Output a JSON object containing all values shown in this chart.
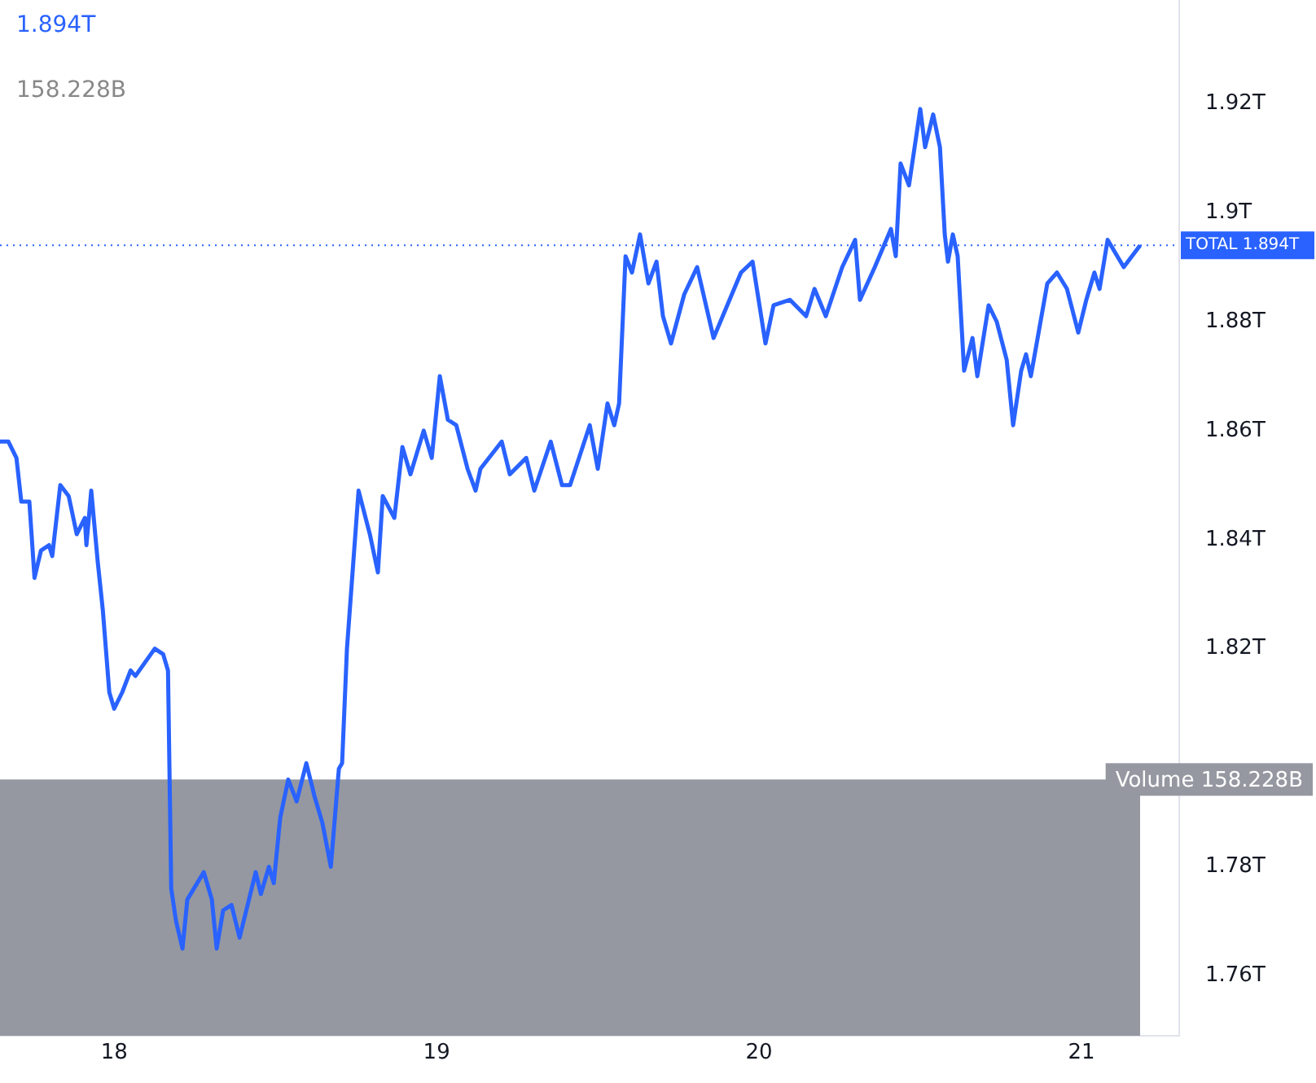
{
  "chart_data": {
    "type": "line",
    "annotations": [
      "1.894T",
      "158.228B"
    ],
    "x": [
      17.646,
      17.672,
      17.697,
      17.712,
      17.737,
      17.753,
      17.773,
      17.798,
      17.808,
      17.833,
      17.859,
      17.884,
      17.909,
      17.914,
      17.929,
      17.949,
      17.965,
      17.985,
      18.0,
      18.025,
      18.051,
      18.066,
      18.126,
      18.152,
      18.167,
      18.177,
      18.192,
      18.212,
      18.227,
      18.278,
      18.303,
      18.318,
      18.338,
      18.364,
      18.389,
      18.439,
      18.455,
      18.48,
      18.495,
      18.515,
      18.54,
      18.566,
      18.596,
      18.621,
      18.646,
      18.672,
      18.697,
      18.707,
      18.722,
      18.758,
      18.793,
      18.818,
      18.833,
      18.869,
      18.894,
      18.919,
      18.96,
      18.985,
      19.01,
      19.035,
      19.061,
      19.096,
      19.121,
      19.136,
      19.202,
      19.227,
      19.278,
      19.303,
      19.354,
      19.389,
      19.414,
      19.475,
      19.5,
      19.53,
      19.551,
      19.566,
      19.586,
      19.606,
      19.631,
      19.657,
      19.682,
      19.702,
      19.727,
      19.768,
      19.808,
      19.859,
      19.944,
      19.98,
      20.02,
      20.045,
      20.096,
      20.146,
      20.172,
      20.207,
      20.258,
      20.298,
      20.313,
      20.359,
      20.409,
      20.424,
      20.439,
      20.465,
      20.5,
      20.515,
      20.54,
      20.561,
      20.576,
      20.586,
      20.601,
      20.616,
      20.636,
      20.662,
      20.677,
      20.712,
      20.737,
      20.768,
      20.788,
      20.813,
      20.828,
      20.843,
      20.894,
      20.924,
      20.955,
      20.99,
      21.015,
      21.04,
      21.056,
      21.081,
      21.131,
      21.182
    ],
    "series": [
      {
        "color": "#2962ff",
        "values": [
          1.858,
          1.858,
          1.855,
          1.847,
          1.847,
          1.833,
          1.838,
          1.839,
          1.837,
          1.85,
          1.848,
          1.841,
          1.844,
          1.839,
          1.849,
          1.836,
          1.827,
          1.812,
          1.809,
          1.812,
          1.816,
          1.815,
          1.82,
          1.819,
          1.816,
          1.776,
          1.77,
          1.765,
          1.774,
          1.779,
          1.774,
          1.765,
          1.772,
          1.773,
          1.767,
          1.779,
          1.775,
          1.78,
          1.777,
          1.789,
          1.796,
          1.792,
          1.799,
          1.793,
          1.788,
          1.78,
          1.798,
          1.799,
          1.82,
          1.849,
          1.841,
          1.834,
          1.848,
          1.844,
          1.857,
          1.852,
          1.86,
          1.855,
          1.87,
          1.862,
          1.861,
          1.853,
          1.849,
          1.853,
          1.858,
          1.852,
          1.855,
          1.849,
          1.858,
          1.85,
          1.85,
          1.861,
          1.853,
          1.865,
          1.861,
          1.865,
          1.892,
          1.889,
          1.896,
          1.887,
          1.891,
          1.881,
          1.876,
          1.885,
          1.89,
          1.877,
          1.889,
          1.891,
          1.876,
          1.883,
          1.884,
          1.881,
          1.886,
          1.881,
          1.89,
          1.895,
          1.884,
          1.89,
          1.897,
          1.892,
          1.909,
          1.905,
          1.919,
          1.912,
          1.918,
          1.912,
          1.896,
          1.891,
          1.896,
          1.892,
          1.871,
          1.877,
          1.87,
          1.883,
          1.88,
          1.873,
          1.861,
          1.871,
          1.874,
          1.87,
          1.887,
          1.889,
          1.886,
          1.878,
          1.884,
          1.889,
          1.886,
          1.895,
          1.89,
          1.894
        ]
      }
    ],
    "xlim": [
      17.646,
      21.303
    ],
    "xticks": [
      18,
      19,
      20,
      21
    ],
    "ylim": [
      1.749,
      1.939
    ],
    "yticks": [
      {
        "value": 1.76,
        "label": "1.76T"
      },
      {
        "value": 1.78,
        "label": "1.78T"
      },
      {
        "value": 1.82,
        "label": "1.82T"
      },
      {
        "value": 1.84,
        "label": "1.84T"
      },
      {
        "value": 1.86,
        "label": "1.86T"
      },
      {
        "value": 1.88,
        "label": "1.88T"
      },
      {
        "value": 1.9,
        "label": "1.9T"
      },
      {
        "value": 1.92,
        "label": "1.92T"
      }
    ],
    "ref_lines": [
      {
        "axis": "y",
        "value": 1.894,
        "label": "TOTAL 1.894T",
        "color": "#2962ff",
        "line_style": "dotted"
      }
    ],
    "bands": [
      {
        "axis": "y",
        "from": 1.749,
        "to": 1.796,
        "label": "Volume 158.228B",
        "color": "#9598a1"
      }
    ],
    "grid": false,
    "legend": false
  }
}
